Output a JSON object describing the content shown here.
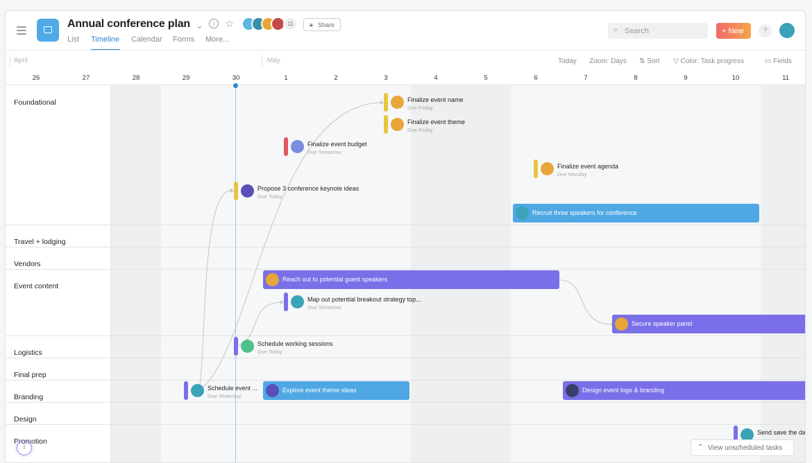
{
  "header": {
    "title": "Annual conference plan",
    "member_count": "11",
    "share_label": "Share",
    "tabs": [
      {
        "label": "List"
      },
      {
        "label": "Timeline"
      },
      {
        "label": "Calendar"
      },
      {
        "label": "Forms"
      },
      {
        "label": "More..."
      }
    ],
    "active_tab": "Timeline",
    "search_placeholder": "Search",
    "new_label": "+ New",
    "help_label": "?"
  },
  "toolbar": {
    "today": "Today",
    "zoom": "Zoom: Days",
    "sort": "Sort",
    "color": "Color: Task progress",
    "fields": "Fields"
  },
  "timeline": {
    "months": [
      "April",
      "May"
    ],
    "days": [
      "26",
      "27",
      "28",
      "29",
      "30",
      "1",
      "2",
      "3",
      "4",
      "5",
      "6",
      "7",
      "8",
      "9",
      "10",
      "11"
    ],
    "today": "30",
    "weekend_days": [
      "28",
      "4",
      "5",
      "11"
    ]
  },
  "sections": [
    {
      "label": "Foundational"
    },
    {
      "label": "Travel + lodging"
    },
    {
      "label": "Vendors"
    },
    {
      "label": "Event content"
    },
    {
      "label": "Logistics"
    },
    {
      "label": "Final prep"
    },
    {
      "label": "Branding"
    },
    {
      "label": "Design"
    },
    {
      "label": "Promotion"
    }
  ],
  "tasks": [
    {
      "name": "Finalize event name",
      "due": "Due Friday",
      "color": "#e8c43f"
    },
    {
      "name": "Finalize event theme",
      "due": "Due Friday",
      "color": "#e8c43f"
    },
    {
      "name": "Finalize event budget",
      "due": "Due Tomorrow",
      "color": "#e0555f"
    },
    {
      "name": "Finalize event agenda",
      "due": "Due Monday",
      "color": "#e8c43f"
    },
    {
      "name": "Propose 3 conference keynote ideas",
      "due": "Due Today",
      "color": "#e8c43f"
    },
    {
      "name": "Recruit three speakers for conference",
      "color": "#4fa8e4"
    },
    {
      "name": "Reach out to potential guest speakers",
      "color": "#7a6fe8"
    },
    {
      "name": "Map out potential breakout strategy top...",
      "due": "Due Tomorrow",
      "color": "#7a6fe8"
    },
    {
      "name": "Secure speaker panel",
      "color": "#7a6fe8"
    },
    {
      "name": "Schedule working sessions",
      "due": "Due Today",
      "color": "#7a6fe8"
    },
    {
      "name": "Schedule event ...",
      "due": "Due Yesterday",
      "color": "#7a6fe8"
    },
    {
      "name": "Explore event theme ideas",
      "color": "#4fa8e4"
    },
    {
      "name": "Design event logo & branding",
      "color": "#7a6fe8"
    },
    {
      "name": "Send save the da",
      "color": "#7a6fe8"
    }
  ],
  "footer": {
    "unscheduled": "View unscheduled tasks",
    "info_icon": "i"
  }
}
